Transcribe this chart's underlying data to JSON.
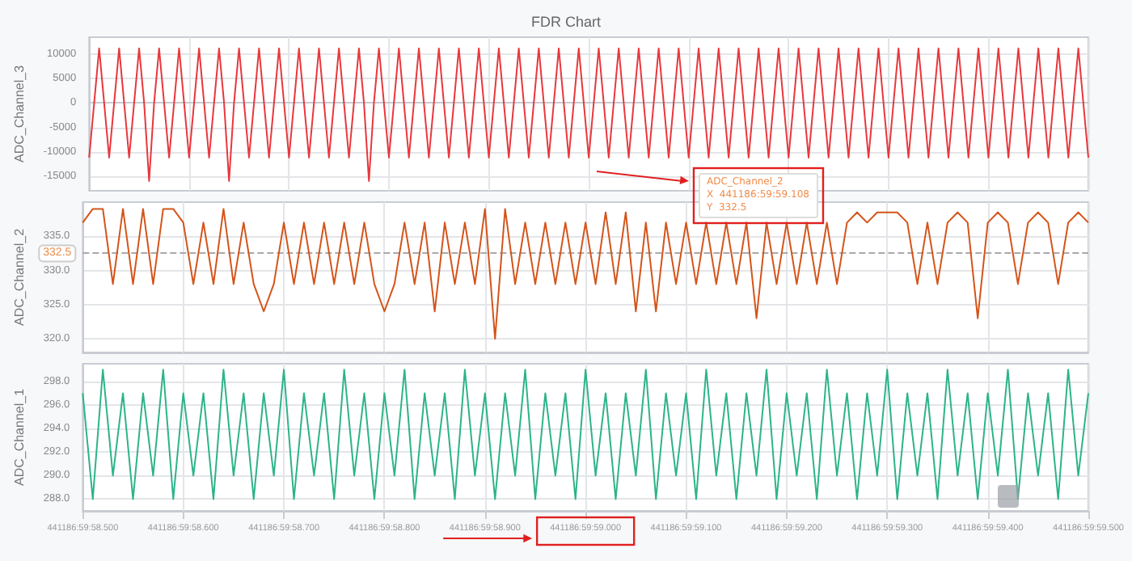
{
  "chart_data": [
    {
      "type": "line",
      "title": "FDR Chart",
      "ylabel": "ADC_Channel_3",
      "grid": true,
      "tick_labels": "y",
      "ylim": [
        -18000,
        13500
      ],
      "yticks": [
        -15000,
        -10000,
        -5000,
        0,
        5000,
        10000
      ],
      "categories": [
        null,
        null,
        null,
        null,
        null,
        null,
        null,
        null,
        null,
        null,
        null,
        null,
        null,
        null,
        null,
        null,
        null,
        null,
        null,
        null,
        null,
        null,
        null,
        null,
        null,
        null,
        null,
        null,
        null,
        null,
        null,
        null,
        null,
        null,
        null,
        null,
        null,
        null,
        null,
        null,
        null,
        null,
        null,
        null,
        null,
        null,
        null,
        null,
        null,
        null,
        null,
        null,
        null,
        null,
        null,
        null,
        null,
        null,
        null,
        null,
        null,
        null,
        null,
        null,
        null,
        null,
        null,
        null,
        null,
        null,
        null,
        null,
        null,
        null,
        null,
        null,
        null,
        null,
        null,
        null,
        null,
        null,
        null,
        null,
        null,
        null,
        null,
        null,
        null,
        null,
        null,
        null,
        null,
        null,
        null,
        null,
        null,
        null,
        null,
        null,
        null,
        null,
        null,
        null,
        null,
        null,
        null,
        null,
        null,
        null,
        null,
        null,
        null,
        null,
        null,
        null,
        null,
        null,
        null,
        null,
        null,
        null,
        null,
        null,
        null,
        null,
        null,
        null,
        null,
        null,
        null,
        null,
        null,
        null,
        null,
        null,
        null,
        null,
        null,
        null,
        null,
        null,
        null,
        null,
        null,
        null,
        null,
        null,
        null,
        null,
        null,
        null,
        null,
        null,
        null,
        null,
        null,
        null,
        null,
        null,
        null,
        null,
        null,
        null,
        null,
        null,
        null,
        null,
        null,
        null,
        null,
        null,
        null,
        null,
        null,
        null,
        null,
        null,
        null,
        null,
        null,
        null,
        null,
        null,
        null,
        null,
        null,
        null,
        null,
        null,
        null,
        null,
        null,
        null,
        null,
        null,
        null,
        null,
        null,
        null,
        null
      ],
      "series": [
        {
          "color": "#e8383d",
          "values": [
            -11200,
            0,
            11200,
            0,
            -11200,
            0,
            11200,
            0,
            -11200,
            0,
            11200,
            0,
            -16000,
            0,
            11200,
            0,
            -11200,
            0,
            11200,
            0,
            -11200,
            0,
            11200,
            0,
            -11200,
            0,
            11200,
            0,
            -16000,
            0,
            11200,
            0,
            -11200,
            0,
            11200,
            0,
            -11200,
            0,
            11200,
            0,
            -11200,
            0,
            11200,
            0,
            -11200,
            0,
            11200,
            0,
            -11200,
            0,
            11200,
            0,
            -11200,
            0,
            11200,
            0,
            -16000,
            0,
            11200,
            0,
            -11200,
            0,
            11200,
            0,
            -11200,
            0,
            11200,
            0,
            -11200,
            0,
            11200,
            0,
            -11200,
            0,
            11200,
            0,
            -11200,
            0,
            11200,
            0,
            -11200,
            0,
            11200,
            0,
            -11200,
            0,
            11200,
            0,
            -11200,
            0,
            11200,
            0,
            -11200,
            0,
            11200,
            0,
            -11200,
            0,
            11200,
            0,
            -11200,
            0,
            11200,
            0,
            -11200,
            0,
            11200,
            0,
            -11200,
            0,
            11200,
            0,
            -11200,
            0,
            11200,
            0,
            -11200,
            0,
            11200,
            0,
            -11200,
            0,
            11200,
            0,
            -11200,
            0,
            11200,
            0,
            -11200,
            0,
            11200,
            0,
            -11200,
            0,
            11200,
            0,
            -11200,
            0,
            11200,
            0,
            -11200,
            0,
            11200,
            0,
            -11200,
            0,
            11200,
            0,
            -11200,
            0,
            11200,
            0,
            -11200,
            0,
            11200,
            0,
            -11200,
            0,
            11200,
            0,
            -11200,
            0,
            11200,
            0,
            -11200,
            0,
            11200,
            0,
            -11200,
            0,
            11200,
            0,
            -11200,
            0,
            11200,
            0,
            -11200,
            0,
            11200,
            0,
            -11200,
            0,
            11200,
            0,
            -11200,
            0,
            11200,
            0,
            -11200,
            0,
            11200,
            0,
            -11200,
            0,
            11200,
            0,
            -11200,
            0,
            11200,
            0,
            -11200
          ]
        }
      ]
    },
    {
      "type": "line",
      "ylabel": "ADC_Channel_2",
      "grid": true,
      "tick_labels": "y",
      "ylim": [
        318,
        340
      ],
      "yticks": [
        {
          "value": 320,
          "label": "320.0"
        },
        {
          "value": 325,
          "label": "325.0"
        },
        {
          "value": 330,
          "label": "330.0"
        },
        {
          "value": 335,
          "label": "335.0"
        }
      ],
      "ref_lines": [
        {
          "axis": "y",
          "value": 332.5,
          "label": "332.5",
          "color": "#aaaaaa",
          "line_style": "dashed"
        }
      ],
      "annotations": [
        "ADC_Channel_2\nX  441186:59:59.108\nY  332.5"
      ],
      "categories": [
        null,
        null,
        null,
        null,
        null,
        null,
        null,
        null,
        null,
        null,
        null,
        null,
        null,
        null,
        null,
        null,
        null,
        null,
        null,
        null,
        null,
        null,
        null,
        null,
        null,
        null,
        null,
        null,
        null,
        null,
        null,
        null,
        null,
        null,
        null,
        null,
        null,
        null,
        null,
        null,
        null,
        null,
        null,
        null,
        null,
        null,
        null,
        null,
        null,
        null,
        null,
        null,
        null,
        null,
        null,
        null,
        null,
        null,
        null,
        null,
        null,
        null,
        null,
        null,
        null,
        null,
        null,
        null,
        null,
        null,
        null,
        null,
        null,
        null,
        null,
        null,
        null,
        null,
        null,
        null,
        null,
        null,
        null,
        null,
        null,
        null,
        null,
        null,
        null,
        null,
        null,
        null,
        null,
        null,
        null,
        null,
        null,
        null,
        null,
        null,
        null
      ],
      "series": [
        {
          "color": "#d4541a",
          "values": [
            337,
            339,
            339,
            328,
            339,
            328,
            339,
            328,
            339,
            339,
            337,
            328,
            337,
            328,
            339,
            328,
            337,
            328,
            324,
            328,
            337,
            328,
            337,
            328,
            337,
            328,
            337,
            328,
            337,
            328,
            324,
            328,
            337,
            328,
            337,
            324,
            337,
            328,
            337,
            328,
            339,
            320,
            339,
            328,
            337,
            328,
            337,
            328,
            337,
            328,
            337,
            328,
            338.5,
            328,
            338.5,
            324,
            337,
            324,
            337,
            328,
            337,
            328,
            337,
            328,
            337,
            328,
            337,
            323,
            337,
            328,
            337,
            328,
            337,
            328,
            337,
            328,
            337,
            338.5,
            337,
            338.5,
            338.5,
            338.5,
            337,
            328,
            337,
            328,
            337,
            338.5,
            337,
            323,
            337,
            338.5,
            337,
            328,
            337,
            338.5,
            337,
            328,
            337,
            338.5,
            337
          ]
        }
      ]
    },
    {
      "type": "line",
      "ylabel": "ADC_Channel_1",
      "grid": true,
      "ylim": [
        287,
        299.5
      ],
      "yticks": [
        {
          "value": 288,
          "label": "288.0"
        },
        {
          "value": 290,
          "label": "290.0"
        },
        {
          "value": 292,
          "label": "292.0"
        },
        {
          "value": 294,
          "label": "294.0"
        },
        {
          "value": 296,
          "label": "296.0"
        },
        {
          "value": 298,
          "label": "298.0"
        }
      ],
      "categories": [
        "441186:59:58.500",
        null,
        null,
        null,
        null,
        null,
        null,
        null,
        null,
        null,
        "441186:59:58.600",
        null,
        null,
        null,
        null,
        null,
        null,
        null,
        null,
        null,
        "441186:59:58.700",
        null,
        null,
        null,
        null,
        null,
        null,
        null,
        null,
        null,
        "441186:59:58.800",
        null,
        null,
        null,
        null,
        null,
        null,
        null,
        null,
        null,
        "441186:59:58.900",
        null,
        null,
        null,
        null,
        null,
        null,
        null,
        null,
        null,
        "441186:59:59.000",
        null,
        null,
        null,
        null,
        null,
        null,
        null,
        null,
        null,
        "441186:59:59.100",
        null,
        null,
        null,
        null,
        null,
        null,
        null,
        null,
        null,
        "441186:59:59.200",
        null,
        null,
        null,
        null,
        null,
        null,
        null,
        null,
        null,
        "441186:59:59.300",
        null,
        null,
        null,
        null,
        null,
        null,
        null,
        null,
        null,
        "441186:59:59.400",
        null,
        null,
        null,
        null,
        null,
        null,
        null,
        null,
        null,
        "441186:59:59.500"
      ],
      "series": [
        {
          "color": "#2db38a",
          "values": [
            297,
            288,
            299,
            290,
            297,
            288,
            297,
            290,
            299,
            288,
            297,
            290,
            297,
            288,
            299,
            290,
            297,
            288,
            297,
            290,
            299,
            288,
            297,
            290,
            297,
            288,
            299,
            290,
            297,
            288,
            297,
            290,
            299,
            288,
            297,
            290,
            297,
            288,
            299,
            290,
            297,
            288,
            297,
            290,
            299,
            288,
            297,
            290,
            297,
            288,
            299,
            290,
            297,
            288,
            297,
            290,
            299,
            288,
            297,
            290,
            297,
            288,
            299,
            290,
            297,
            288,
            297,
            290,
            299,
            288,
            297,
            290,
            297,
            288,
            299,
            290,
            297,
            288,
            297,
            290,
            299,
            288,
            297,
            290,
            297,
            288,
            299,
            290,
            297,
            288,
            297,
            290,
            299,
            288,
            297,
            290,
            297,
            288,
            299,
            290,
            297
          ]
        }
      ]
    }
  ]
}
